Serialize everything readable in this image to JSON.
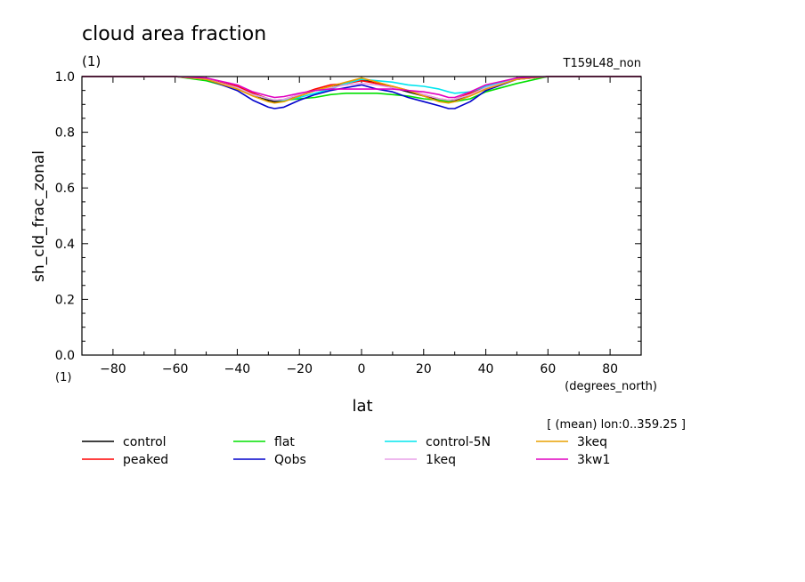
{
  "chart_data": {
    "type": "line",
    "title": "cloud area fraction",
    "title_units": "(1)",
    "run_label": "T159L48_non",
    "ylabel": "sh_cld_frac_zonal",
    "yunits": "(1)",
    "xlabel": "lat",
    "xunits": "(degrees_north)",
    "note": "[ (mean) lon:0..359.25 ]",
    "xlim": [
      -90,
      90
    ],
    "ylim": [
      0.0,
      1.0
    ],
    "xticks": [
      -80,
      -60,
      -40,
      -20,
      0,
      20,
      40,
      60,
      80
    ],
    "xtick_labels": [
      "−80",
      "−60",
      "−40",
      "−20",
      "0",
      "20",
      "40",
      "60",
      "80"
    ],
    "yticks": [
      0.0,
      0.2,
      0.4,
      0.6,
      0.8,
      1.0
    ],
    "ytick_labels": [
      "0.0",
      "0.2",
      "0.4",
      "0.6",
      "0.8",
      "1.0"
    ],
    "x": [
      -90,
      -60,
      -50,
      -40,
      -35,
      -30,
      -28,
      -25,
      -20,
      -15,
      -10,
      -5,
      0,
      5,
      10,
      15,
      20,
      25,
      28,
      30,
      35,
      40,
      50,
      60,
      90
    ],
    "series": [
      {
        "name": "control",
        "color": "#000000",
        "values": [
          1.0,
          1.0,
          0.99,
          0.96,
          0.935,
          0.915,
          0.91,
          0.912,
          0.93,
          0.95,
          0.96,
          0.975,
          0.99,
          0.975,
          0.96,
          0.945,
          0.93,
          0.915,
          0.91,
          0.912,
          0.935,
          0.96,
          0.99,
          1.0,
          1.0
        ]
      },
      {
        "name": "peaked",
        "color": "#ff0000",
        "values": [
          1.0,
          1.0,
          0.99,
          0.965,
          0.94,
          0.92,
          0.915,
          0.918,
          0.935,
          0.955,
          0.97,
          0.975,
          0.985,
          0.975,
          0.965,
          0.95,
          0.935,
          0.92,
          0.915,
          0.918,
          0.94,
          0.965,
          0.99,
          1.0,
          1.0
        ]
      },
      {
        "name": "flat",
        "color": "#00e000",
        "values": [
          1.0,
          1.0,
          0.985,
          0.955,
          0.935,
          0.92,
          0.915,
          0.915,
          0.92,
          0.925,
          0.935,
          0.94,
          0.94,
          0.94,
          0.935,
          0.93,
          0.92,
          0.915,
          0.91,
          0.91,
          0.92,
          0.945,
          0.975,
          1.0,
          1.0
        ]
      },
      {
        "name": "Qobs",
        "color": "#0000cc",
        "values": [
          1.0,
          1.0,
          0.99,
          0.95,
          0.915,
          0.89,
          0.885,
          0.89,
          0.915,
          0.935,
          0.95,
          0.96,
          0.97,
          0.955,
          0.945,
          0.925,
          0.91,
          0.895,
          0.885,
          0.885,
          0.91,
          0.95,
          0.99,
          1.0,
          1.0
        ]
      },
      {
        "name": "control-5N",
        "color": "#00e5ee",
        "values": [
          1.0,
          1.0,
          0.99,
          0.96,
          0.935,
          0.92,
          0.915,
          0.915,
          0.925,
          0.94,
          0.955,
          0.975,
          0.99,
          0.985,
          0.98,
          0.97,
          0.965,
          0.955,
          0.945,
          0.94,
          0.945,
          0.965,
          0.99,
          1.0,
          1.0
        ]
      },
      {
        "name": "1keq",
        "color": "#e8a0e8",
        "values": [
          1.0,
          1.0,
          0.99,
          0.96,
          0.935,
          0.92,
          0.915,
          0.918,
          0.935,
          0.95,
          0.96,
          0.97,
          0.975,
          0.97,
          0.96,
          0.95,
          0.935,
          0.92,
          0.915,
          0.918,
          0.935,
          0.96,
          0.99,
          1.0,
          1.0
        ]
      },
      {
        "name": "3keq",
        "color": "#e8a000",
        "values": [
          1.0,
          1.0,
          0.99,
          0.955,
          0.93,
          0.91,
          0.905,
          0.91,
          0.93,
          0.95,
          0.965,
          0.98,
          0.995,
          0.98,
          0.965,
          0.95,
          0.93,
          0.91,
          0.905,
          0.91,
          0.93,
          0.955,
          0.99,
          1.0,
          1.0
        ]
      },
      {
        "name": "3kw1",
        "color": "#e000c0",
        "values": [
          1.0,
          1.0,
          0.995,
          0.97,
          0.945,
          0.93,
          0.925,
          0.928,
          0.94,
          0.95,
          0.955,
          0.955,
          0.955,
          0.955,
          0.955,
          0.95,
          0.945,
          0.935,
          0.925,
          0.925,
          0.945,
          0.97,
          0.995,
          1.0,
          1.0
        ]
      }
    ]
  }
}
